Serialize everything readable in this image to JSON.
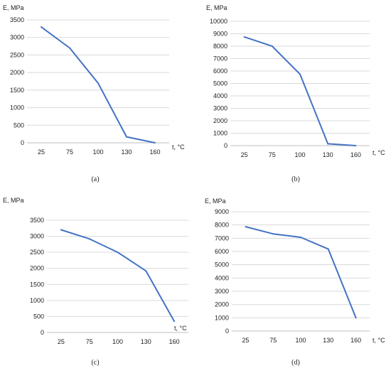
{
  "chart_data": [
    {
      "type": "line",
      "panel_label": "(a)",
      "ylabel": "E, MPa",
      "xlabel": "t, °C",
      "categories": [
        "25",
        "75",
        "100",
        "130",
        "160"
      ],
      "values": [
        3300,
        2700,
        1700,
        170,
        0
      ],
      "ylim": [
        0,
        3500
      ],
      "yticks": [
        0,
        500,
        1000,
        1500,
        2000,
        2500,
        3000,
        3500
      ],
      "grid": "horizontal",
      "line_color": "#4472C4"
    },
    {
      "type": "line",
      "panel_label": "(b)",
      "ylabel": "E, MPa",
      "xlabel": "t, °C",
      "categories": [
        "25",
        "75",
        "100",
        "130",
        "160"
      ],
      "values": [
        8750,
        8000,
        5750,
        150,
        0
      ],
      "ylim": [
        0,
        10000
      ],
      "yticks": [
        0,
        1000,
        2000,
        3000,
        4000,
        5000,
        6000,
        7000,
        8000,
        9000,
        10000
      ],
      "grid": "horizontal",
      "line_color": "#4472C4"
    },
    {
      "type": "line",
      "panel_label": "(c)",
      "ylabel": "E, MPa",
      "xlabel": "t, °C",
      "categories": [
        "25",
        "75",
        "100",
        "130",
        "160"
      ],
      "values": [
        3200,
        2920,
        2500,
        1920,
        350
      ],
      "ylim": [
        0,
        3500
      ],
      "yticks": [
        0,
        500,
        1000,
        1500,
        2000,
        2500,
        3000,
        3500
      ],
      "grid": "horizontal",
      "line_color": "#4472C4"
    },
    {
      "type": "line",
      "panel_label": "(d)",
      "ylabel": "E, MPa",
      "xlabel": "t, °C",
      "categories": [
        "25",
        "75",
        "100",
        "130",
        "160"
      ],
      "values": [
        7870,
        7330,
        7070,
        6180,
        1000
      ],
      "ylim": [
        0,
        9000
      ],
      "yticks": [
        0,
        1000,
        2000,
        3000,
        4000,
        5000,
        6000,
        7000,
        8000,
        9000
      ],
      "grid": "horizontal",
      "line_color": "#4472C4"
    }
  ]
}
